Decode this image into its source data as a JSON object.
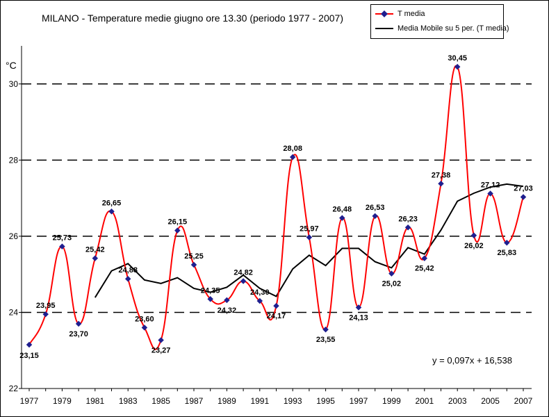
{
  "chart_data": {
    "type": "line",
    "title": "MILANO  - Temperature medie giugno ore 13.30 (periodo 1977 - 2007)",
    "ylabel": "°C",
    "ylim": [
      22,
      31
    ],
    "xlim": [
      1977,
      2007
    ],
    "yticks": [
      22,
      24,
      26,
      28,
      30
    ],
    "xticks": [
      "1977",
      "1979",
      "1981",
      "1983",
      "1985",
      "1987",
      "1989",
      "1991",
      "1993",
      "1995",
      "1997",
      "1999",
      "2001",
      "2003",
      "2005",
      "2007"
    ],
    "grid": "horizontal dashed",
    "legend_position": "top-right",
    "series": [
      {
        "name": "T media",
        "color": "#ff0000",
        "marker_color": "#1f1f8f",
        "x": [
          1977,
          1978,
          1979,
          1980,
          1981,
          1982,
          1983,
          1984,
          1985,
          1986,
          1987,
          1988,
          1989,
          1990,
          1991,
          1992,
          1993,
          1994,
          1995,
          1996,
          1997,
          1998,
          1999,
          2000,
          2001,
          2002,
          2003,
          2004,
          2005,
          2006,
          2007
        ],
        "values": [
          23.15,
          23.95,
          25.73,
          23.7,
          25.42,
          26.65,
          24.88,
          23.6,
          23.27,
          26.15,
          25.25,
          24.35,
          24.32,
          24.82,
          24.3,
          24.17,
          28.08,
          25.97,
          23.55,
          26.48,
          24.13,
          26.53,
          25.02,
          26.23,
          25.42,
          27.38,
          30.45,
          26.02,
          27.12,
          25.83,
          27.03
        ],
        "labels": [
          "23,15",
          "23,95",
          "25,73",
          "23,70",
          "25,42",
          "26,65",
          "24,88",
          "23,60",
          "23,27",
          "26,15",
          "25,25",
          "24,35",
          "24,32",
          "24,82",
          "24,30",
          "24,17",
          "28,08",
          "25,97",
          "23,55",
          "26,48",
          "24,13",
          "26,53",
          "25,02",
          "26,23",
          "25,42",
          "27,38",
          "30,45",
          "26,02",
          "27,12",
          "25,83",
          "27,03"
        ]
      },
      {
        "name": "Media Mobile su 5 per. (T media)",
        "color": "#000000",
        "x": [
          1981,
          1982,
          1983,
          1984,
          1985,
          1986,
          1987,
          1988,
          1989,
          1990,
          1991,
          1992,
          1993,
          1994,
          1995,
          1996,
          1997,
          1998,
          1999,
          2000,
          2001,
          2002,
          2003,
          2004,
          2005,
          2006,
          2007
        ],
        "values": [
          24.39,
          25.09,
          25.28,
          24.85,
          24.76,
          24.91,
          24.63,
          24.53,
          24.66,
          24.98,
          24.63,
          24.42,
          25.14,
          25.5,
          25.23,
          25.68,
          25.68,
          25.33,
          25.17,
          25.7,
          25.53,
          26.16,
          26.92,
          27.13,
          27.29,
          27.37,
          27.31
        ]
      }
    ],
    "annotation": "y = 0,097x + 16,538"
  }
}
